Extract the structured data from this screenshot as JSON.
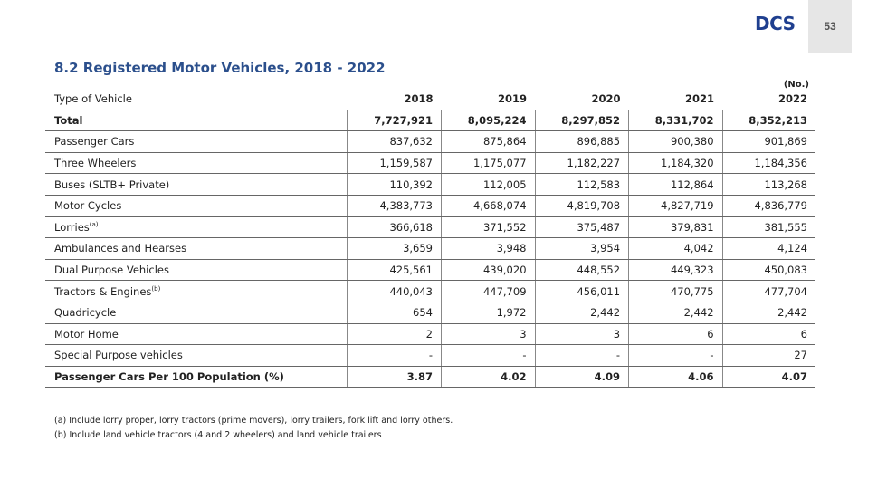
{
  "header": {
    "logo_text": "DCS",
    "page_number": "53",
    "accent_color": "#2b4f8c"
  },
  "title": "8.2 Registered Motor Vehicles, 2018 - 2022",
  "unit": "(No.)",
  "table": {
    "columns": [
      "Type of  Vehicle",
      "2018",
      "2019",
      "2020",
      "2021",
      "2022"
    ],
    "rows": [
      {
        "label": "Total",
        "note": "",
        "values": [
          "7,727,921",
          "8,095,224",
          "8,297,852",
          "8,331,702",
          "8,352,213"
        ]
      },
      {
        "label": "Passenger Cars",
        "note": "",
        "values": [
          "837,632",
          "875,864",
          "896,885",
          "900,380",
          "901,869"
        ]
      },
      {
        "label": "Three Wheelers",
        "note": "",
        "values": [
          "1,159,587",
          "1,175,077",
          "1,182,227",
          "1,184,320",
          "1,184,356"
        ]
      },
      {
        "label": "Buses (SLTB+ Private)",
        "note": "",
        "values": [
          "110,392",
          "112,005",
          "112,583",
          "112,864",
          "113,268"
        ]
      },
      {
        "label": "Motor Cycles",
        "note": "",
        "values": [
          "4,383,773",
          "4,668,074",
          "4,819,708",
          "4,827,719",
          "4,836,779"
        ]
      },
      {
        "label": "Lorries",
        "note": "(a)",
        "values": [
          "366,618",
          "371,552",
          "375,487",
          "379,831",
          "381,555"
        ]
      },
      {
        "label": "Ambulances and  Hearses",
        "note": "",
        "values": [
          "3,659",
          "3,948",
          "3,954",
          "4,042",
          "4,124"
        ]
      },
      {
        "label": "Dual Purpose Vehicles",
        "note": "",
        "values": [
          "425,561",
          "439,020",
          "448,552",
          "449,323",
          "450,083"
        ]
      },
      {
        "label": "Tractors & Engines",
        "note": "(b)",
        "values": [
          "440,043",
          "447,709",
          "456,011",
          "470,775",
          "477,704"
        ]
      },
      {
        "label": "Quadricycle",
        "note": "",
        "values": [
          "654",
          "1,972",
          "2,442",
          "2,442",
          "2,442"
        ]
      },
      {
        "label": "Motor Home",
        "note": "",
        "values": [
          "2",
          "3",
          "3",
          "6",
          "6"
        ]
      },
      {
        "label": "Special Purpose vehicles",
        "note": "",
        "values": [
          "-",
          "-",
          "-",
          "-",
          "27"
        ]
      },
      {
        "label": "Passenger Cars Per 100 Population (%)",
        "note": "",
        "values": [
          "3.87",
          "4.02",
          "4.09",
          "4.06",
          "4.07"
        ]
      }
    ]
  },
  "notes": [
    "(a) Include lorry proper, lorry tractors (prime movers), lorry trailers, fork lift and lorry others.",
    "(b)  Include land vehicle tractors (4 and 2 wheelers) and land vehicle trailers"
  ]
}
